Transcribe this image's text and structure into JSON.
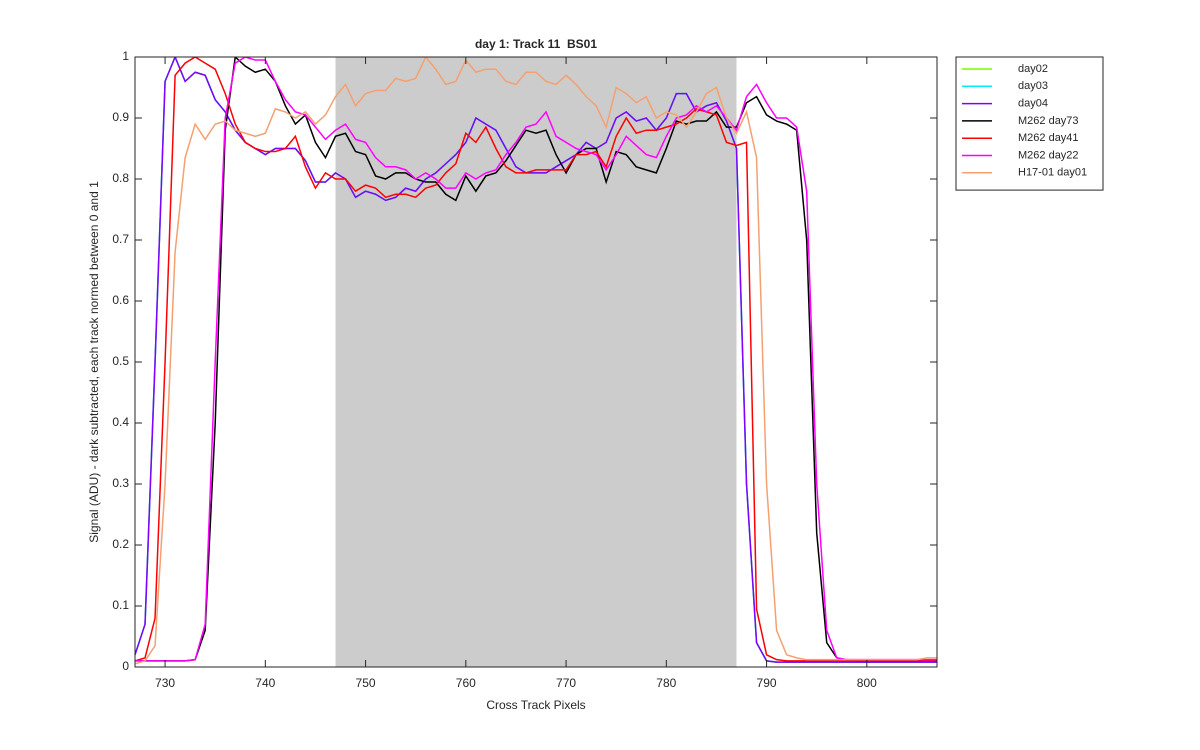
{
  "chart_data": {
    "type": "line",
    "title": "day 1: Track 11  BS01",
    "xlabel": "Cross Track Pixels",
    "ylabel": "Signal (ADU) - dark subtracted, each track normed between 0 and 1",
    "xlim": [
      727,
      807
    ],
    "ylim": [
      0,
      1
    ],
    "xticks": [
      730,
      740,
      750,
      760,
      770,
      780,
      790,
      800
    ],
    "yticks": [
      0,
      0.1,
      0.2,
      0.3,
      0.4,
      0.5,
      0.6,
      0.7,
      0.8,
      0.9,
      1
    ],
    "shaded_x": [
      747,
      787
    ],
    "shade_color": "#cccccc",
    "legend": "outside-right",
    "x": [
      727,
      728,
      729,
      730,
      731,
      732,
      733,
      734,
      735,
      736,
      737,
      738,
      739,
      740,
      741,
      742,
      743,
      744,
      745,
      746,
      747,
      748,
      749,
      750,
      751,
      752,
      753,
      754,
      755,
      756,
      757,
      758,
      759,
      760,
      761,
      762,
      763,
      764,
      765,
      766,
      767,
      768,
      769,
      770,
      771,
      772,
      773,
      774,
      775,
      776,
      777,
      778,
      779,
      780,
      781,
      782,
      783,
      784,
      785,
      786,
      787,
      788,
      789,
      790,
      791,
      792,
      793,
      794,
      795,
      796,
      797,
      798,
      799,
      800,
      801,
      802,
      803,
      804,
      805,
      806,
      807
    ],
    "series": [
      {
        "name": "day02",
        "color": "#77ff00",
        "values": [
          0.02,
          0.07,
          0.5,
          0.96,
          1.0,
          0.96,
          0.975,
          0.97,
          0.93,
          0.91,
          0.88,
          0.86,
          0.85,
          0.84,
          0.85,
          0.85,
          0.85,
          0.83,
          0.795,
          0.795,
          0.81,
          0.8,
          0.77,
          0.78,
          0.775,
          0.765,
          0.77,
          0.785,
          0.78,
          0.8,
          0.81,
          0.825,
          0.84,
          0.86,
          0.9,
          0.89,
          0.88,
          0.85,
          0.82,
          0.81,
          0.81,
          0.81,
          0.82,
          0.83,
          0.84,
          0.86,
          0.85,
          0.86,
          0.9,
          0.91,
          0.895,
          0.9,
          0.88,
          0.9,
          0.94,
          0.94,
          0.91,
          0.92,
          0.925,
          0.895,
          0.85,
          0.3,
          0.04,
          0.01,
          0.008,
          0.008,
          0.008,
          0.008,
          0.008,
          0.008,
          0.008,
          0.008,
          0.008,
          0.008,
          0.008,
          0.008,
          0.008,
          0.008,
          0.008,
          0.008,
          0.008
        ]
      },
      {
        "name": "day03",
        "color": "#00eeff",
        "values": [
          0.02,
          0.07,
          0.5,
          0.96,
          1.0,
          0.96,
          0.975,
          0.97,
          0.93,
          0.91,
          0.88,
          0.86,
          0.85,
          0.84,
          0.85,
          0.85,
          0.85,
          0.83,
          0.795,
          0.795,
          0.81,
          0.8,
          0.77,
          0.78,
          0.775,
          0.765,
          0.77,
          0.785,
          0.78,
          0.8,
          0.81,
          0.825,
          0.84,
          0.86,
          0.9,
          0.89,
          0.88,
          0.85,
          0.82,
          0.81,
          0.81,
          0.81,
          0.82,
          0.83,
          0.84,
          0.86,
          0.85,
          0.86,
          0.9,
          0.91,
          0.895,
          0.9,
          0.88,
          0.9,
          0.94,
          0.94,
          0.91,
          0.92,
          0.925,
          0.895,
          0.85,
          0.3,
          0.04,
          0.01,
          0.008,
          0.008,
          0.008,
          0.008,
          0.008,
          0.008,
          0.008,
          0.008,
          0.008,
          0.008,
          0.008,
          0.008,
          0.008,
          0.008,
          0.008,
          0.008,
          0.008
        ]
      },
      {
        "name": "day04",
        "color": "#7f00ff",
        "values": [
          0.02,
          0.07,
          0.5,
          0.96,
          1.0,
          0.96,
          0.975,
          0.97,
          0.93,
          0.91,
          0.88,
          0.86,
          0.85,
          0.84,
          0.85,
          0.85,
          0.85,
          0.83,
          0.795,
          0.795,
          0.81,
          0.8,
          0.77,
          0.78,
          0.775,
          0.765,
          0.77,
          0.785,
          0.78,
          0.8,
          0.81,
          0.825,
          0.84,
          0.86,
          0.9,
          0.89,
          0.88,
          0.85,
          0.82,
          0.81,
          0.81,
          0.81,
          0.82,
          0.83,
          0.84,
          0.86,
          0.85,
          0.86,
          0.9,
          0.91,
          0.895,
          0.9,
          0.88,
          0.9,
          0.94,
          0.94,
          0.91,
          0.92,
          0.925,
          0.895,
          0.85,
          0.3,
          0.04,
          0.01,
          0.008,
          0.008,
          0.008,
          0.008,
          0.008,
          0.008,
          0.008,
          0.008,
          0.008,
          0.008,
          0.008,
          0.008,
          0.008,
          0.008,
          0.008,
          0.008,
          0.008
        ]
      },
      {
        "name": "M262 day73",
        "color": "#000000",
        "values": [
          0.01,
          0.01,
          0.01,
          0.01,
          0.01,
          0.01,
          0.012,
          0.06,
          0.4,
          0.88,
          1.0,
          0.985,
          0.975,
          0.98,
          0.96,
          0.92,
          0.89,
          0.905,
          0.86,
          0.835,
          0.87,
          0.875,
          0.845,
          0.84,
          0.805,
          0.8,
          0.81,
          0.81,
          0.8,
          0.795,
          0.795,
          0.775,
          0.765,
          0.805,
          0.78,
          0.805,
          0.81,
          0.83,
          0.855,
          0.88,
          0.875,
          0.88,
          0.84,
          0.81,
          0.84,
          0.85,
          0.85,
          0.795,
          0.845,
          0.84,
          0.82,
          0.815,
          0.81,
          0.85,
          0.895,
          0.89,
          0.895,
          0.895,
          0.91,
          0.885,
          0.885,
          0.925,
          0.935,
          0.905,
          0.895,
          0.89,
          0.88,
          0.7,
          0.22,
          0.04,
          0.015,
          0.012,
          0.01,
          0.01,
          0.01,
          0.01,
          0.01,
          0.01,
          0.01,
          0.01,
          0.01
        ]
      },
      {
        "name": "M262 day41",
        "color": "#ff0000",
        "values": [
          0.01,
          0.015,
          0.08,
          0.5,
          0.97,
          0.99,
          1.0,
          0.99,
          0.98,
          0.94,
          0.89,
          0.86,
          0.85,
          0.845,
          0.845,
          0.85,
          0.87,
          0.82,
          0.785,
          0.81,
          0.8,
          0.8,
          0.78,
          0.79,
          0.785,
          0.77,
          0.775,
          0.775,
          0.77,
          0.785,
          0.79,
          0.81,
          0.825,
          0.875,
          0.86,
          0.885,
          0.85,
          0.82,
          0.81,
          0.81,
          0.815,
          0.815,
          0.815,
          0.815,
          0.84,
          0.84,
          0.845,
          0.82,
          0.87,
          0.9,
          0.875,
          0.88,
          0.88,
          0.885,
          0.89,
          0.9,
          0.915,
          0.91,
          0.905,
          0.86,
          0.855,
          0.86,
          0.095,
          0.02,
          0.012,
          0.01,
          0.01,
          0.01,
          0.01,
          0.01,
          0.01,
          0.01,
          0.01,
          0.01,
          0.01,
          0.01,
          0.01,
          0.01,
          0.01,
          0.01,
          0.01
        ]
      },
      {
        "name": "M262 day22",
        "color": "#ff00ff",
        "values": [
          0.01,
          0.01,
          0.01,
          0.01,
          0.01,
          0.01,
          0.012,
          0.07,
          0.5,
          0.9,
          0.99,
          1.0,
          0.995,
          0.995,
          0.96,
          0.93,
          0.91,
          0.905,
          0.885,
          0.865,
          0.88,
          0.89,
          0.865,
          0.86,
          0.835,
          0.82,
          0.82,
          0.815,
          0.8,
          0.81,
          0.8,
          0.785,
          0.785,
          0.81,
          0.8,
          0.81,
          0.815,
          0.84,
          0.86,
          0.885,
          0.89,
          0.91,
          0.87,
          0.86,
          0.85,
          0.845,
          0.84,
          0.815,
          0.84,
          0.87,
          0.855,
          0.84,
          0.835,
          0.87,
          0.9,
          0.905,
          0.92,
          0.91,
          0.92,
          0.9,
          0.88,
          0.935,
          0.955,
          0.925,
          0.9,
          0.9,
          0.885,
          0.78,
          0.3,
          0.06,
          0.015,
          0.012,
          0.012,
          0.012,
          0.012,
          0.012,
          0.012,
          0.012,
          0.012,
          0.012,
          0.012
        ]
      },
      {
        "name": "H17-01 day01",
        "color": "#f4a070",
        "values": [
          0.005,
          0.01,
          0.035,
          0.3,
          0.68,
          0.835,
          0.89,
          0.865,
          0.89,
          0.895,
          0.88,
          0.875,
          0.87,
          0.875,
          0.915,
          0.91,
          0.9,
          0.91,
          0.89,
          0.905,
          0.935,
          0.955,
          0.92,
          0.94,
          0.945,
          0.945,
          0.965,
          0.96,
          0.965,
          1.0,
          0.98,
          0.955,
          0.96,
          0.995,
          0.975,
          0.98,
          0.98,
          0.96,
          0.955,
          0.975,
          0.975,
          0.96,
          0.955,
          0.97,
          0.955,
          0.935,
          0.92,
          0.885,
          0.95,
          0.94,
          0.925,
          0.935,
          0.9,
          0.91,
          0.905,
          0.885,
          0.91,
          0.94,
          0.95,
          0.9,
          0.875,
          0.91,
          0.835,
          0.3,
          0.06,
          0.02,
          0.015,
          0.012,
          0.012,
          0.012,
          0.012,
          0.012,
          0.012,
          0.012,
          0.012,
          0.012,
          0.012,
          0.012,
          0.012,
          0.015,
          0.015
        ]
      }
    ]
  }
}
